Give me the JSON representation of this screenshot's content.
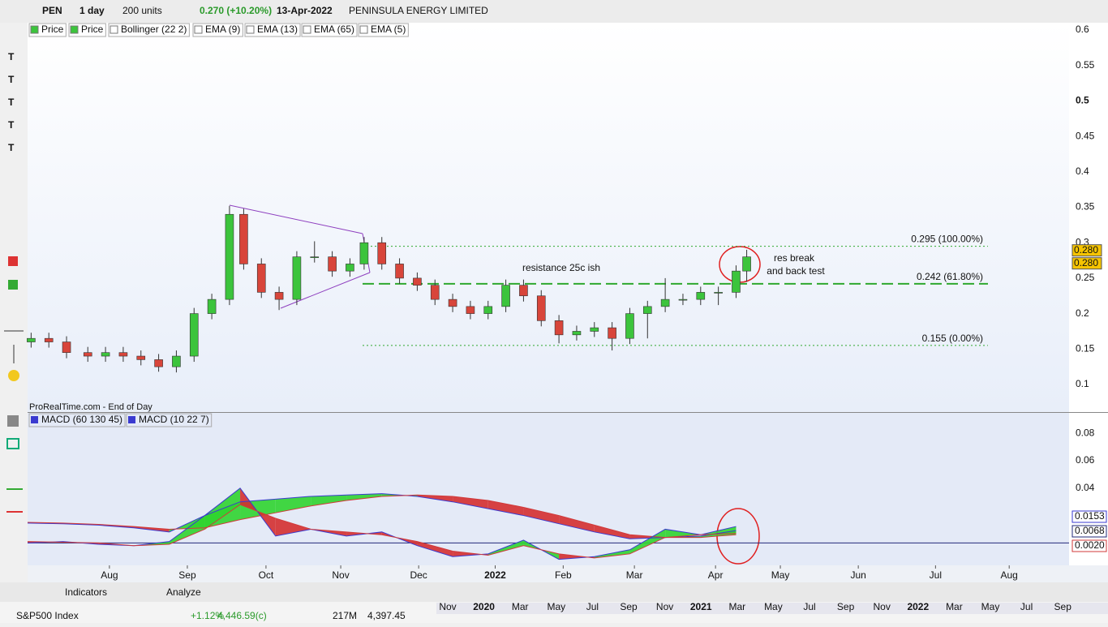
{
  "toolbar": {
    "symbol": "PEN",
    "interval": "1 day",
    "units": "200 units",
    "change": "0.270 (+10.20%)",
    "date": "13-Apr-2022",
    "company": "PENINSULA ENERGY LIMITED"
  },
  "indicators": [
    "Price",
    "Price",
    "Bollinger (22 2)",
    "EMA (9)",
    "EMA (13)",
    "EMA (65)",
    "EMA (5)"
  ],
  "source": "ProRealTime.com - End of Day",
  "chart_data": [
    {
      "type": "candlestick",
      "up_color": "#3cc43c",
      "down_color": "#d8453a",
      "xlim": [
        0,
        294
      ],
      "xticks": [
        {
          "value": 23.1,
          "label": "Aug"
        },
        {
          "value": 45.1,
          "label": "Sep"
        },
        {
          "value": 67.3,
          "label": "Oct"
        },
        {
          "value": 88.4,
          "label": "Nov"
        },
        {
          "value": 110.4,
          "label": "Dec"
        },
        {
          "value": 132,
          "label": "2022"
        },
        {
          "value": 151.2,
          "label": "Feb"
        },
        {
          "value": 171.3,
          "label": "Mar"
        },
        {
          "value": 194.2,
          "label": "Apr"
        },
        {
          "value": 212.5,
          "label": "May"
        },
        {
          "value": 234.5,
          "label": "Jun"
        },
        {
          "value": 256.3,
          "label": "Jul"
        },
        {
          "value": 277.1,
          "label": "Aug"
        }
      ],
      "ylim": [
        0.0611,
        0.6103
      ],
      "yticks": [
        0.6,
        0.55,
        0.5,
        0.45,
        0.4,
        0.35,
        0.3,
        0.25,
        0.2,
        0.15,
        0.1
      ],
      "x": [
        1,
        6,
        11,
        17,
        22,
        27,
        32,
        37,
        42,
        47,
        52,
        57,
        61,
        66,
        71,
        76,
        81,
        86,
        91,
        95,
        100,
        105,
        110,
        115,
        120,
        125,
        130,
        135,
        140,
        145,
        150,
        155,
        160,
        165,
        170,
        175,
        180,
        185,
        190,
        195,
        200,
        203
      ],
      "open": [
        0.16,
        0.165,
        0.16,
        0.145,
        0.14,
        0.145,
        0.14,
        0.135,
        0.125,
        0.14,
        0.2,
        0.22,
        0.34,
        0.27,
        0.23,
        0.22,
        0.28,
        0.28,
        0.26,
        0.27,
        0.3,
        0.27,
        0.25,
        0.24,
        0.22,
        0.21,
        0.2,
        0.21,
        0.24,
        0.225,
        0.19,
        0.17,
        0.175,
        0.18,
        0.165,
        0.2,
        0.21,
        0.22,
        0.22,
        0.23,
        0.23,
        0.26
      ],
      "high": [
        0.173,
        0.173,
        0.168,
        0.153,
        0.153,
        0.153,
        0.148,
        0.143,
        0.148,
        0.208,
        0.228,
        0.352,
        0.348,
        0.278,
        0.238,
        0.288,
        0.302,
        0.288,
        0.278,
        0.308,
        0.308,
        0.278,
        0.258,
        0.248,
        0.228,
        0.218,
        0.218,
        0.248,
        0.248,
        0.233,
        0.198,
        0.183,
        0.188,
        0.188,
        0.208,
        0.218,
        0.25,
        0.228,
        0.238,
        0.238,
        0.268,
        0.29
      ],
      "low": [
        0.152,
        0.152,
        0.137,
        0.132,
        0.132,
        0.132,
        0.127,
        0.118,
        0.117,
        0.132,
        0.192,
        0.212,
        0.262,
        0.222,
        0.205,
        0.212,
        0.272,
        0.252,
        0.252,
        0.262,
        0.262,
        0.242,
        0.232,
        0.212,
        0.202,
        0.192,
        0.192,
        0.202,
        0.217,
        0.182,
        0.158,
        0.162,
        0.167,
        0.148,
        0.157,
        0.165,
        0.202,
        0.212,
        0.212,
        0.212,
        0.222,
        0.245
      ],
      "close": [
        0.165,
        0.16,
        0.145,
        0.14,
        0.145,
        0.14,
        0.135,
        0.125,
        0.14,
        0.2,
        0.22,
        0.34,
        0.27,
        0.23,
        0.22,
        0.28,
        0.28,
        0.26,
        0.27,
        0.3,
        0.27,
        0.25,
        0.24,
        0.22,
        0.21,
        0.2,
        0.21,
        0.24,
        0.225,
        0.19,
        0.17,
        0.175,
        0.18,
        0.165,
        0.2,
        0.21,
        0.22,
        0.22,
        0.23,
        0.23,
        0.26,
        0.28
      ],
      "levels": [
        {
          "value": 0.295,
          "label": "0.295 (100.00%)"
        },
        {
          "value": 0.242,
          "label": "0.242 (61.80%)"
        },
        {
          "value": 0.155,
          "label": "0.155 (0.00%)"
        }
      ],
      "last_labels": [
        {
          "value": 0.28,
          "label": "0.280"
        },
        {
          "value": 0.28,
          "label": "0.280"
        }
      ],
      "annotations": [
        "resistance 25c ish",
        "res break",
        "and back test"
      ]
    },
    {
      "type": "line",
      "xlim": [
        0,
        294
      ],
      "ylim": [
        -0.0164,
        0.095
      ],
      "yticks": [
        0.08,
        0.06,
        0.04
      ],
      "x": [
        0,
        10,
        20,
        30,
        40,
        50,
        60,
        70,
        80,
        90,
        100,
        110,
        120,
        130,
        140,
        150,
        160,
        170,
        180,
        190,
        200
      ],
      "series": [
        {
          "name": "MACD (60 130 45)",
          "color": "#3a3ad0",
          "values": [
            0.0145,
            0.014,
            0.013,
            0.011,
            0.008,
            0.02,
            0.03,
            0.032,
            0.034,
            0.035,
            0.036,
            0.034,
            0.03,
            0.025,
            0.02,
            0.014,
            0.008,
            0.003,
            0.004,
            0.005,
            0.009
          ]
        },
        {
          "name": "",
          "color": "#d03a3a",
          "values": [
            0.015,
            0.0145,
            0.0135,
            0.012,
            0.01,
            0.011,
            0.017,
            0.022,
            0.027,
            0.031,
            0.034,
            0.035,
            0.034,
            0.031,
            0.026,
            0.02,
            0.013,
            0.006,
            0.004,
            0.004,
            0.006
          ]
        },
        {
          "name": "MACD (10 22 7)",
          "color": "#3a3ad0",
          "values": [
            0,
            0.001,
            -0.001,
            -0.002,
            0.001,
            0.02,
            0.04,
            0.005,
            0.01,
            0.005,
            0.008,
            -0.002,
            -0.01,
            -0.008,
            0.002,
            -0.012,
            -0.01,
            -0.005,
            0.01,
            0.006,
            0.012
          ]
        },
        {
          "name": "",
          "color": "#d03a3a",
          "values": [
            0.001,
            0.0005,
            0,
            -0.002,
            -0.001,
            0.01,
            0.028,
            0.018,
            0.01,
            0.008,
            0.006,
            0.001,
            -0.006,
            -0.009,
            -0.002,
            -0.008,
            -0.011,
            -0.008,
            0.004,
            0.006,
            0.007
          ]
        }
      ],
      "last_labels": [
        {
          "value": 0.0153,
          "label": "0.0153"
        },
        {
          "value": 0.0068,
          "label": "0.0068"
        },
        {
          "value": 0.002,
          "label": "0.0020"
        }
      ]
    }
  ],
  "bottom": {
    "indicators": "Indicators",
    "analyze": "Analyze",
    "ticker": "S&P500 Index",
    "change": "+1.12%",
    "close": "4,446.59(c)",
    "volume": "217M",
    "prev": "4,397.45",
    "timeline": [
      "Nov",
      "2020",
      "Mar",
      "May",
      "Jul",
      "Sep",
      "Nov",
      "2021",
      "Mar",
      "May",
      "Jul",
      "Sep",
      "Nov",
      "2022",
      "Mar",
      "May",
      "Jul",
      "Sep"
    ]
  }
}
